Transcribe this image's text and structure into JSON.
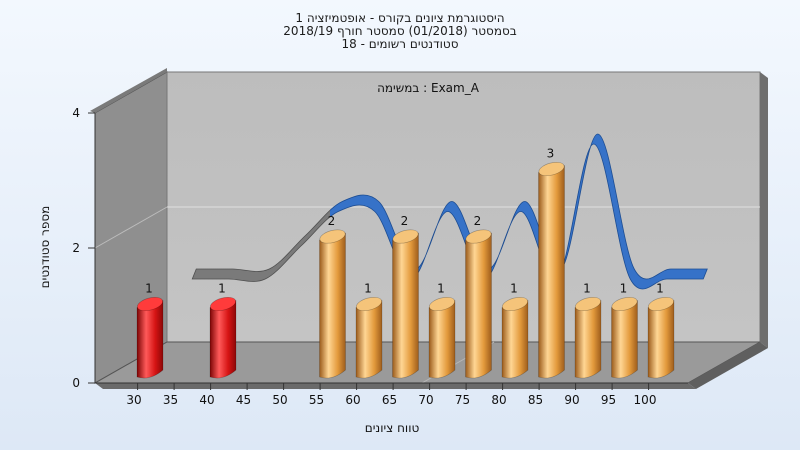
{
  "title": {
    "line1": "היסטוגרמת ציונים בקורס - אופטמיזציה 1",
    "line2": "בסמסטר  (01/2018)  סמסטר חורף 2018/19",
    "line3": "סטודנטים רשומים - 18"
  },
  "chart_data": {
    "type": "bar",
    "title": "היסטוגרמת ציונים בקורס - אופטמיזציה 1",
    "subtitle": "בסמסטר  (01/2018)  סמסטר חורף 2018/19 — סטודנטים רשומים - 18",
    "annotation": "במשימה : Exam_A",
    "xlabel": "טווח ציונים",
    "ylabel": "מספר סטודנטים",
    "ylim": [
      0,
      4
    ],
    "y_ticks": [
      0,
      2,
      4
    ],
    "x_ticks": [
      "30",
      "35",
      "40",
      "45",
      "50",
      "55",
      "60",
      "65",
      "70",
      "75",
      "80",
      "85",
      "90",
      "95",
      "100"
    ],
    "bars": [
      {
        "x": 30,
        "value": 1,
        "color": "red"
      },
      {
        "x": 40,
        "value": 1,
        "color": "red"
      },
      {
        "x": 55,
        "value": 2,
        "color": "orange"
      },
      {
        "x": 60,
        "value": 1,
        "color": "orange"
      },
      {
        "x": 65,
        "value": 2,
        "color": "orange"
      },
      {
        "x": 70,
        "value": 1,
        "color": "orange"
      },
      {
        "x": 75,
        "value": 2,
        "color": "orange"
      },
      {
        "x": 80,
        "value": 1,
        "color": "orange"
      },
      {
        "x": 85,
        "value": 3,
        "color": "orange"
      },
      {
        "x": 90,
        "value": 1,
        "color": "orange"
      },
      {
        "x": 95,
        "value": 1,
        "color": "orange"
      },
      {
        "x": 100,
        "value": 1,
        "color": "orange"
      }
    ],
    "trend_line": {
      "x": [
        32.5,
        37.5,
        42.5,
        47.5,
        52.5,
        57.5,
        62.5,
        67.5,
        72.5,
        77.5,
        82.5,
        87.5,
        92.5,
        97.5,
        102.5
      ],
      "values": [
        1,
        1,
        1,
        1.5,
        2,
        2,
        1,
        2,
        1,
        2,
        1,
        3,
        1,
        1,
        1
      ]
    },
    "grid": true,
    "legend": "none",
    "colors": {
      "red": "#dd1c1c",
      "orange": "#e6a043",
      "trend": "#3672c8",
      "trend_gray": "#7a7a7a"
    }
  }
}
